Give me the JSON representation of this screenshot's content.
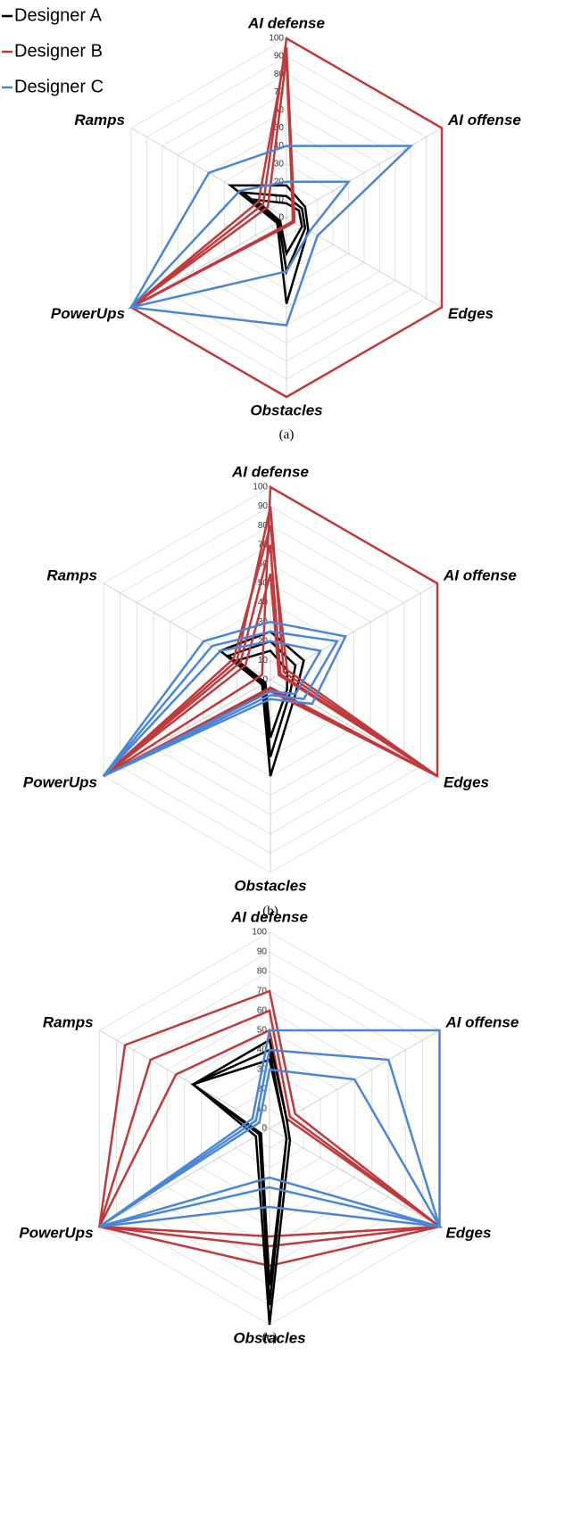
{
  "chart_data": [
    {
      "type": "radar",
      "caption": "(a)",
      "categories": [
        "AI defense",
        "AI offense",
        "Edges",
        "Obstacles",
        "PowerUps",
        "Ramps"
      ],
      "rlim": [
        0,
        100
      ],
      "rticks": [
        0,
        10,
        20,
        30,
        40,
        50,
        60,
        70,
        80,
        90,
        100
      ],
      "grid": true,
      "legend": "top-left",
      "series": [
        {
          "name": "Designer A",
          "color": "#000000",
          "polygons": [
            [
              18,
              12,
              14,
              48,
              6,
              36
            ],
            [
              12,
              10,
              12,
              30,
              5,
              28
            ],
            [
              8,
              8,
              10,
              20,
              4,
              20
            ]
          ]
        },
        {
          "name": "Designer B",
          "color": "#c0393b",
          "polygons": [
            [
              100,
              100,
              100,
              100,
              100,
              15
            ],
            [
              95,
              5,
              5,
              5,
              100,
              18
            ],
            [
              90,
              4,
              4,
              4,
              100,
              12
            ]
          ]
        },
        {
          "name": "Designer C",
          "color": "#4a86d8",
          "polygons": [
            [
              40,
              80,
              20,
              60,
              100,
              50
            ],
            [
              20,
              40,
              15,
              30,
              100,
              30
            ]
          ]
        }
      ]
    },
    {
      "type": "radar",
      "caption": "(b)",
      "categories": [
        "AI defense",
        "AI offense",
        "Edges",
        "Obstacles",
        "PowerUps",
        "Ramps"
      ],
      "rlim": [
        0,
        100
      ],
      "rticks": [
        0,
        10,
        20,
        30,
        40,
        50,
        60,
        70,
        80,
        90,
        100
      ],
      "grid": true,
      "series": [
        {
          "color": "#000000",
          "polygons": [
            [
              25,
              20,
              15,
              50,
              5,
              30
            ],
            [
              20,
              15,
              12,
              40,
              4,
              25
            ],
            [
              15,
              10,
              10,
              30,
              3,
              20
            ]
          ]
        },
        {
          "color": "#c0393b",
          "polygons": [
            [
              100,
              100,
              100,
              5,
              100,
              5
            ],
            [
              90,
              8,
              100,
              5,
              100,
              20
            ],
            [
              80,
              10,
              100,
              4,
              100,
              22
            ],
            [
              70,
              6,
              100,
              6,
              100,
              18
            ],
            [
              55,
              5,
              100,
              5,
              100,
              15
            ]
          ]
        },
        {
          "color": "#4a86d8",
          "polygons": [
            [
              30,
              45,
              25,
              10,
              100,
              40
            ],
            [
              25,
              40,
              20,
              8,
              100,
              35
            ],
            [
              20,
              30,
              15,
              6,
              100,
              30
            ]
          ]
        }
      ]
    },
    {
      "type": "radar",
      "caption": "(c)",
      "categories": [
        "AI defense",
        "AI offense",
        "Edges",
        "Obstacles",
        "PowerUps",
        "Ramps"
      ],
      "rlim": [
        0,
        100
      ],
      "rticks": [
        0,
        10,
        20,
        30,
        40,
        50,
        60,
        70,
        80,
        90,
        100
      ],
      "grid": true,
      "series": [
        {
          "color": "#c0393b",
          "polygons": [
            [
              70,
              15,
              100,
              70,
              100,
              85
            ],
            [
              60,
              12,
              100,
              60,
              100,
              70
            ],
            [
              50,
              10,
              100,
              55,
              100,
              55
            ]
          ]
        },
        {
          "color": "#000000",
          "polygons": [
            [
              45,
              10,
              12,
              100,
              8,
              45
            ],
            [
              40,
              8,
              10,
              90,
              6,
              45
            ],
            [
              35,
              8,
              10,
              80,
              5,
              45
            ]
          ]
        },
        {
          "color": "#4a86d8",
          "polygons": [
            [
              50,
              100,
              100,
              40,
              100,
              10
            ],
            [
              40,
              70,
              100,
              30,
              100,
              8
            ],
            [
              30,
              50,
              100,
              25,
              100,
              6
            ]
          ]
        }
      ]
    }
  ]
}
